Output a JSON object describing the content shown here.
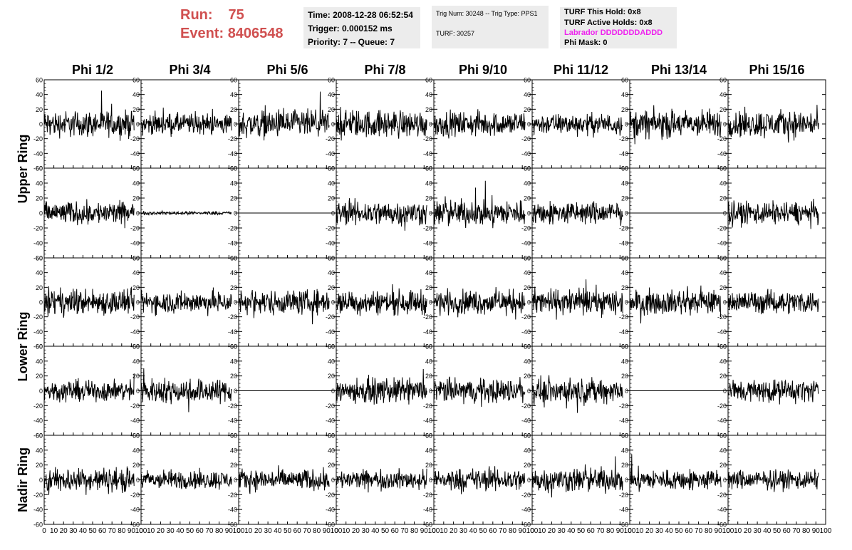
{
  "header": {
    "run_label": "Run:",
    "run_value": "75",
    "event_label": "Event:",
    "event_value": "8406548"
  },
  "info_time": {
    "time": "Time: 2008-12-28 06:52:54",
    "trigger": "Trigger: 0.000152 ms",
    "priority": "Priority: 7 -- Queue: 7"
  },
  "info_trig": {
    "trig": "Trig Num: 30248 -- Trig Type: PPS1",
    "turf": "TURF: 30257"
  },
  "info_turf": {
    "this_hold": "TURF This Hold: 0x8",
    "active_holds": "TURF Active Holds: 0x8",
    "labrador": "Labrador DDDDDDDADDD",
    "phi_mask": "Phi Mask: 0"
  },
  "colors": {
    "run_text": "#d05050",
    "labrador_text": "#ee22ee",
    "info_bg": "#ececec",
    "trace": "#000000"
  },
  "chart_data": {
    "type": "line",
    "columns": [
      "Phi 1/2",
      "Phi 3/4",
      "Phi 5/6",
      "Phi 7/8",
      "Phi 9/10",
      "Phi 11/12",
      "Phi 13/14",
      "Phi 15/16"
    ],
    "ring_labels": [
      "Upper Ring",
      "Lower Ring",
      "Nadir Ring"
    ],
    "ylim": [
      -60,
      60
    ],
    "yticks": [
      -60,
      -40,
      -20,
      0,
      20,
      40,
      60
    ],
    "ytick_labels": [
      "-60",
      "-40",
      "-20",
      "0",
      "20",
      "40",
      "60"
    ],
    "xlim": [
      0,
      100
    ],
    "xticks": [
      0,
      10,
      20,
      30,
      40,
      50,
      60,
      70,
      80,
      90,
      100
    ],
    "xtick_labels": [
      "0",
      "10",
      "20",
      "30",
      "40",
      "50",
      "60",
      "70",
      "80",
      "90",
      "100"
    ],
    "trace_end_x": 93,
    "grid": false,
    "amplitude_rows": [
      [
        15,
        12,
        16,
        16,
        14,
        12,
        16,
        16
      ],
      [
        13,
        2,
        0,
        14,
        15,
        13,
        0,
        13
      ],
      [
        15,
        13,
        14,
        14,
        14,
        15,
        14,
        13
      ],
      [
        12,
        14,
        0,
        14,
        14,
        14,
        0,
        13
      ],
      [
        14,
        11,
        12,
        11,
        13,
        14,
        12,
        11
      ]
    ]
  }
}
